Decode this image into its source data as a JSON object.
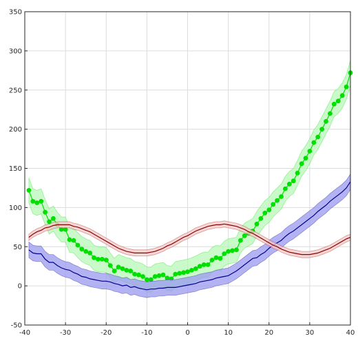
{
  "chart_data": {
    "type": "line",
    "title": "",
    "xlabel": "",
    "ylabel": "",
    "xlim": [
      -40,
      40
    ],
    "ylim": [
      -50,
      350
    ],
    "xticks": [
      -40,
      -30,
      -20,
      -10,
      0,
      10,
      20,
      30,
      40
    ],
    "yticks": [
      -50,
      0,
      50,
      100,
      150,
      200,
      250,
      300,
      350
    ],
    "xtick_labels": [
      "-40",
      "-30",
      "-20",
      "-10",
      "0",
      "10",
      "20",
      "30",
      "40"
    ],
    "ytick_labels": [
      "-50",
      "0",
      "50",
      "100",
      "150",
      "200",
      "250",
      "300",
      "350"
    ],
    "grid": true,
    "legend": "none",
    "series": [
      {
        "color": "#00e000",
        "fill": "#b8f7b8",
        "marker": "circle",
        "band": 16,
        "x": [
          -39.0,
          -38.0,
          -37.0,
          -36.0,
          -35.0,
          -34.0,
          -33.0,
          -32.0,
          -31.0,
          -30.0,
          -29.0,
          -28.0,
          -27.0,
          -26.0,
          -25.0,
          -24.0,
          -23.0,
          -22.0,
          -21.0,
          -20.0,
          -19.0,
          -18.0,
          -17.0,
          -16.0,
          -15.0,
          -14.0,
          -13.0,
          -12.0,
          -11.0,
          -10.0,
          -9.0,
          -8.0,
          -7.0,
          -6.0,
          -5.0,
          -4.0,
          -3.0,
          -2.0,
          -1.0,
          0.0,
          1.0,
          2.0,
          3.0,
          4.0,
          5.0,
          6.0,
          7.0,
          8.0,
          9.0,
          10.0,
          11.0,
          12.0,
          13.0,
          14.0,
          15.0,
          16.0,
          17.0,
          18.0,
          19.0,
          20.0,
          21.0,
          22.0,
          23.0,
          24.0,
          25.0,
          26.0,
          27.0,
          28.0,
          29.0,
          30.0,
          31.0,
          32.0,
          33.0,
          34.0,
          35.0,
          36.0,
          37.0,
          38.0,
          39.0,
          40.0
        ],
        "y": [
          122.0,
          108.0,
          106.0,
          108.0,
          94.0,
          82.0,
          86.0,
          78.0,
          72.0,
          72.0,
          59.0,
          58.0,
          52.0,
          47.0,
          44.0,
          42.0,
          36.0,
          34.0,
          34.0,
          33.0,
          26.0,
          19.0,
          24.0,
          22.0,
          20.0,
          19.0,
          15.0,
          14.0,
          12.0,
          8.0,
          8.0,
          12.0,
          13.0,
          14.0,
          10.0,
          9.0,
          15.0,
          16.0,
          17.0,
          18.0,
          20.0,
          22.0,
          25.0,
          27.0,
          27.0,
          33.0,
          36.0,
          35.0,
          41.0,
          44.0,
          45.0,
          46.0,
          58.0,
          64.0,
          67.0,
          70.0,
          79.0,
          86.0,
          93.0,
          97.0,
          104.0,
          109.0,
          114.0,
          124.0,
          130.0,
          134.0,
          144.0,
          156.0,
          163.0,
          172.0,
          183.0,
          190.0,
          200.0,
          210.0,
          220.0,
          232.0,
          236.0,
          243.0,
          254.0,
          272.0
        ]
      },
      {
        "color": "#00008b",
        "fill": "#9a9af0",
        "marker": "none",
        "band": 10,
        "x": [
          -39.0,
          -38.0,
          -37.0,
          -36.0,
          -35.0,
          -34.0,
          -33.0,
          -32.0,
          -31.0,
          -30.0,
          -29.0,
          -28.0,
          -27.0,
          -26.0,
          -25.0,
          -24.0,
          -23.0,
          -22.0,
          -21.0,
          -20.0,
          -19.0,
          -18.0,
          -17.0,
          -16.0,
          -15.0,
          -14.0,
          -13.0,
          -12.0,
          -11.0,
          -10.0,
          -9.0,
          -8.0,
          -7.0,
          -6.0,
          -5.0,
          -4.0,
          -3.0,
          -2.0,
          -1.0,
          0.0,
          1.0,
          2.0,
          3.0,
          4.0,
          5.0,
          6.0,
          7.0,
          8.0,
          9.0,
          10.0,
          11.0,
          12.0,
          13.0,
          14.0,
          15.0,
          16.0,
          17.0,
          18.0,
          19.0,
          20.0,
          21.0,
          22.0,
          23.0,
          24.0,
          25.0,
          26.0,
          27.0,
          28.0,
          29.0,
          30.0,
          31.0,
          32.0,
          33.0,
          34.0,
          35.0,
          36.0,
          37.0,
          38.0,
          39.0,
          40.0
        ],
        "y": [
          46.0,
          42.0,
          41.0,
          41.0,
          34.0,
          30.0,
          30.0,
          26.0,
          23.0,
          21.0,
          20.0,
          17.0,
          15.0,
          12.0,
          11.0,
          9.0,
          8.0,
          7.0,
          6.0,
          6.0,
          5.0,
          3.0,
          2.0,
          0.0,
          1.0,
          -2.0,
          -1.0,
          -3.0,
          -4.0,
          -5.0,
          -4.0,
          -4.0,
          -3.0,
          -3.0,
          -2.0,
          -2.0,
          -2.0,
          -1.0,
          0.0,
          1.0,
          2.0,
          3.0,
          5.0,
          6.0,
          7.0,
          8.0,
          10.0,
          11.0,
          12.0,
          13.0,
          16.0,
          19.0,
          23.0,
          27.0,
          31.0,
          35.0,
          36.0,
          40.0,
          43.0,
          48.0,
          52.0,
          55.0,
          58.0,
          63.0,
          67.0,
          70.0,
          74.0,
          78.0,
          82.0,
          86.0,
          90.0,
          95.0,
          99.0,
          103.0,
          108.0,
          112.0,
          116.0,
          120.0,
          125.0,
          133.0
        ]
      },
      {
        "color": "#8b0000",
        "fill": "#f4c8c8",
        "marker": "none",
        "band": 4,
        "x": [
          -39.0,
          -38.0,
          -37.0,
          -36.0,
          -35.0,
          -34.0,
          -33.0,
          -32.0,
          -31.0,
          -30.0,
          -29.0,
          -28.0,
          -27.0,
          -26.0,
          -25.0,
          -24.0,
          -23.0,
          -22.0,
          -21.0,
          -20.0,
          -19.0,
          -18.0,
          -17.0,
          -16.0,
          -15.0,
          -14.0,
          -13.0,
          -12.0,
          -11.0,
          -10.0,
          -9.0,
          -8.0,
          -7.0,
          -6.0,
          -5.0,
          -4.0,
          -3.0,
          -2.0,
          -1.0,
          0.0,
          1.0,
          2.0,
          3.0,
          4.0,
          5.0,
          6.0,
          7.0,
          8.0,
          9.0,
          10.0,
          11.0,
          12.0,
          13.0,
          14.0,
          15.0,
          16.0,
          17.0,
          18.0,
          19.0,
          20.0,
          21.0,
          22.0,
          23.0,
          24.0,
          25.0,
          26.0,
          27.0,
          28.0,
          29.0,
          30.0,
          31.0,
          32.0,
          33.0,
          34.0,
          35.0,
          36.0,
          37.0,
          38.0,
          39.0,
          40.0
        ],
        "y": [
          62.0,
          66.0,
          69.0,
          71.0,
          74.0,
          75.0,
          77.0,
          78.0,
          78.0,
          78.0,
          78.0,
          76.0,
          75.0,
          73.0,
          71.0,
          69.0,
          66.0,
          63.0,
          60.0,
          57.0,
          54.0,
          51.0,
          48.0,
          46.0,
          44.0,
          43.0,
          42.0,
          42.0,
          42.0,
          42.0,
          43.0,
          44.0,
          46.0,
          48.0,
          51.0,
          53.0,
          56.0,
          59.0,
          62.0,
          64.0,
          67.0,
          70.0,
          72.0,
          74.0,
          76.0,
          77.0,
          78.0,
          78.0,
          79.0,
          78.0,
          77.0,
          76.0,
          74.0,
          72.0,
          69.0,
          67.0,
          64.0,
          61.0,
          58.0,
          55.0,
          52.0,
          50.0,
          47.0,
          45.0,
          43.0,
          42.0,
          41.0,
          40.0,
          40.0,
          40.0,
          41.0,
          42.0,
          44.0,
          46.0,
          48.0,
          51.0,
          54.0,
          57.0,
          60.0,
          62.0
        ]
      }
    ]
  }
}
